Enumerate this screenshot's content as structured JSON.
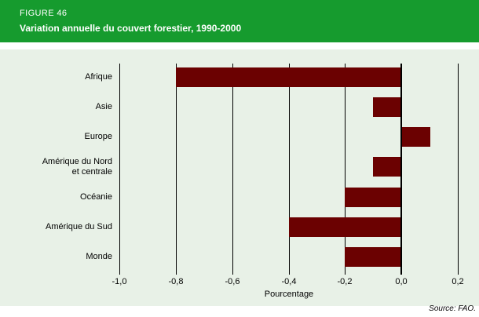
{
  "header": {
    "figure_label": "FIGURE 46",
    "title": "Variation annuelle du couvert forestier, 1990-2000"
  },
  "source": "Source: FAO.",
  "colors": {
    "header_bg": "#169b2e",
    "panel_bg": "#e8f1e7",
    "bar": "#6b0101",
    "grid": "#000000"
  },
  "chart_data": {
    "type": "bar",
    "orientation": "horizontal",
    "title": "Variation annuelle du couvert forestier, 1990-2000",
    "categories": [
      "Afrique",
      "Asie",
      "Europe",
      "Amérique du Nord\net centrale",
      "Océanie",
      "Amérique du Sud",
      "Monde"
    ],
    "values": [
      -0.8,
      -0.1,
      0.1,
      -0.1,
      -0.2,
      -0.4,
      -0.2
    ],
    "xlabel": "Pourcentage",
    "xlim": [
      -1.0,
      0.2
    ],
    "xticks": [
      -1.0,
      -0.8,
      -0.6,
      -0.4,
      -0.2,
      0.0,
      0.2
    ],
    "xtick_labels": [
      "-1,0",
      "-0,8",
      "-0,6",
      "-0,4",
      "-0,2",
      "0,0",
      "0,2"
    ],
    "grid": true,
    "legend": null
  }
}
